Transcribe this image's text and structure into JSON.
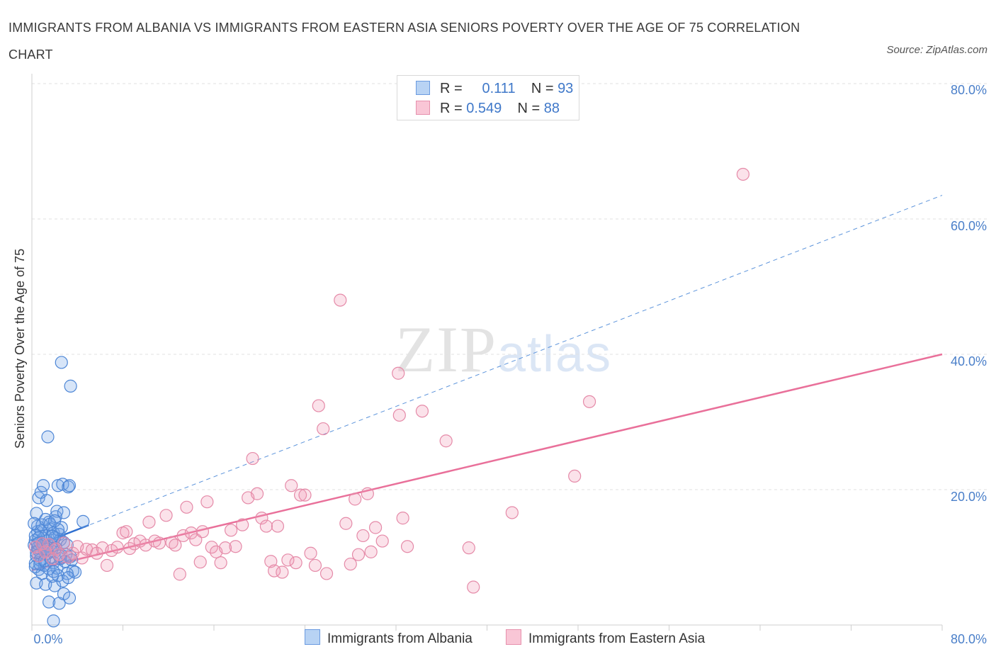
{
  "title": "IMMIGRANTS FROM ALBANIA VS IMMIGRANTS FROM EASTERN ASIA SENIORS POVERTY OVER THE AGE OF 75 CORRELATION CHART",
  "source": "Source: ZipAtlas.com",
  "watermark": {
    "zip": "ZIP",
    "atlas": "atlas"
  },
  "legend": {
    "albania": {
      "r_label": "R =",
      "r_value": "0.111",
      "n_label": "N =",
      "n_value": "93",
      "color": "#a9c8ef",
      "stroke": "#5a8fd6"
    },
    "eastern_asia": {
      "r_label": "R =",
      "r_value": "0.549",
      "n_label": "N =",
      "n_value": "88",
      "color": "#f7bfd0",
      "stroke": "#e07fa0"
    }
  },
  "bottom_legend": {
    "albania": "Immigrants from Albania",
    "eastern_asia": "Immigrants from Eastern Asia"
  },
  "chart_data": {
    "type": "scatter",
    "title": "IMMIGRANTS FROM ALBANIA VS IMMIGRANTS FROM EASTERN ASIA SENIORS POVERTY OVER THE AGE OF 75 CORRELATION CHART",
    "xlabel": "",
    "ylabel": "Seniors Poverty Over the Age of 75",
    "xlim": [
      0,
      80
    ],
    "ylim": [
      0,
      80
    ],
    "x_tick_labels": [
      "0.0%",
      "80.0%"
    ],
    "y_tick_labels": [
      "20.0%",
      "40.0%",
      "60.0%",
      "80.0%"
    ],
    "y_ticks": [
      20,
      40,
      60,
      80
    ],
    "grid": true,
    "series": [
      {
        "name": "Immigrants from Albania",
        "color": "#5b93db",
        "trend": {
          "x0": 0,
          "y0": 11.5,
          "x1": 80,
          "y1": 63.5,
          "solid_until": 5
        },
        "points": [
          [
            0.2,
            11.8
          ],
          [
            0.3,
            12.5
          ],
          [
            0.4,
            10.2
          ],
          [
            0.5,
            13.8
          ],
          [
            0.3,
            9.1
          ],
          [
            0.6,
            11.0
          ],
          [
            0.7,
            12.2
          ],
          [
            0.8,
            10.5
          ],
          [
            0.5,
            14.6
          ],
          [
            0.9,
            11.6
          ],
          [
            1.0,
            12.8
          ],
          [
            1.1,
            10.9
          ],
          [
            1.2,
            13.2
          ],
          [
            0.4,
            16.5
          ],
          [
            0.6,
            18.8
          ],
          [
            0.8,
            19.6
          ],
          [
            1.0,
            20.6
          ],
          [
            1.3,
            18.4
          ],
          [
            1.5,
            15.2
          ],
          [
            1.6,
            14.2
          ],
          [
            1.7,
            12.0
          ],
          [
            1.8,
            11.3
          ],
          [
            1.9,
            13.6
          ],
          [
            2.0,
            10.8
          ],
          [
            2.1,
            16.0
          ],
          [
            2.2,
            16.8
          ],
          [
            2.3,
            20.6
          ],
          [
            2.4,
            13.4
          ],
          [
            2.5,
            12.6
          ],
          [
            2.6,
            14.4
          ],
          [
            2.7,
            20.8
          ],
          [
            2.8,
            12.2
          ],
          [
            3.0,
            10.4
          ],
          [
            3.1,
            11.8
          ],
          [
            3.2,
            20.4
          ],
          [
            3.3,
            20.6
          ],
          [
            3.4,
            10.1
          ],
          [
            3.5,
            9.6
          ],
          [
            3.6,
            8.0
          ],
          [
            4.5,
            15.3
          ],
          [
            2.8,
            16.6
          ],
          [
            1.4,
            27.8
          ],
          [
            2.6,
            38.8
          ],
          [
            3.4,
            35.3
          ],
          [
            0.4,
            6.2
          ],
          [
            0.6,
            8.2
          ],
          [
            0.9,
            7.6
          ],
          [
            1.2,
            6.0
          ],
          [
            1.5,
            3.4
          ],
          [
            2.0,
            5.8
          ],
          [
            2.4,
            3.2
          ],
          [
            2.8,
            4.6
          ],
          [
            3.3,
            4.0
          ],
          [
            3.8,
            7.8
          ],
          [
            1.8,
            7.2
          ],
          [
            1.1,
            8.8
          ],
          [
            0.7,
            9.6
          ],
          [
            0.3,
            13.2
          ],
          [
            0.2,
            15.0
          ],
          [
            1.6,
            10.0
          ],
          [
            1.9,
            9.2
          ],
          [
            2.2,
            8.4
          ],
          [
            2.5,
            9.8
          ],
          [
            0.5,
            11.4
          ],
          [
            0.8,
            13.9
          ],
          [
            1.3,
            12.4
          ],
          [
            1.7,
            11.0
          ],
          [
            2.0,
            12.9
          ],
          [
            2.3,
            14.1
          ],
          [
            2.9,
            9.4
          ],
          [
            3.1,
            7.6
          ],
          [
            0.4,
            10.7
          ],
          [
            0.6,
            12.9
          ],
          [
            1.0,
            11.9
          ],
          [
            1.4,
            10.6
          ],
          [
            1.8,
            13.1
          ],
          [
            2.1,
            11.4
          ],
          [
            2.4,
            10.2
          ],
          [
            0.9,
            14.8
          ],
          [
            1.2,
            15.6
          ],
          [
            1.6,
            14.9
          ],
          [
            2.0,
            15.4
          ],
          [
            0.3,
            8.6
          ],
          [
            0.7,
            9.0
          ],
          [
            1.1,
            9.5
          ],
          [
            1.5,
            8.3
          ],
          [
            1.9,
            7.9
          ],
          [
            2.3,
            7.3
          ],
          [
            2.7,
            6.5
          ],
          [
            3.2,
            7.0
          ],
          [
            1.9,
            0.6
          ],
          [
            0.5,
            12.0
          ],
          [
            1.3,
            11.2
          ]
        ]
      },
      {
        "name": "Immigrants from Eastern Asia",
        "color": "#e9799f",
        "trend": {
          "x0": 0,
          "y0": 8.1,
          "x1": 80,
          "y1": 40.0
        },
        "points": [
          [
            0.3,
            11.5
          ],
          [
            0.6,
            10.2
          ],
          [
            0.9,
            12.0
          ],
          [
            1.2,
            10.8
          ],
          [
            1.5,
            11.9
          ],
          [
            1.8,
            9.8
          ],
          [
            2.1,
            11.2
          ],
          [
            2.4,
            10.4
          ],
          [
            2.8,
            12.1
          ],
          [
            3.2,
            10.0
          ],
          [
            3.6,
            10.6
          ],
          [
            4.0,
            11.6
          ],
          [
            4.4,
            9.9
          ],
          [
            4.8,
            11.2
          ],
          [
            5.3,
            11.1
          ],
          [
            5.7,
            10.6
          ],
          [
            6.2,
            11.4
          ],
          [
            6.6,
            8.8
          ],
          [
            7.0,
            11.0
          ],
          [
            7.5,
            11.5
          ],
          [
            8.0,
            13.6
          ],
          [
            8.3,
            13.8
          ],
          [
            8.6,
            11.3
          ],
          [
            9.0,
            12.0
          ],
          [
            9.5,
            12.4
          ],
          [
            10.0,
            11.8
          ],
          [
            10.3,
            15.2
          ],
          [
            10.8,
            12.4
          ],
          [
            11.2,
            12.1
          ],
          [
            11.8,
            16.2
          ],
          [
            12.3,
            12.2
          ],
          [
            12.6,
            11.8
          ],
          [
            13.0,
            7.5
          ],
          [
            13.3,
            13.2
          ],
          [
            13.6,
            17.4
          ],
          [
            14.0,
            13.6
          ],
          [
            14.4,
            12.6
          ],
          [
            14.8,
            9.3
          ],
          [
            15.0,
            13.8
          ],
          [
            15.4,
            18.2
          ],
          [
            15.8,
            11.5
          ],
          [
            16.2,
            10.8
          ],
          [
            16.6,
            9.2
          ],
          [
            17.0,
            11.4
          ],
          [
            17.5,
            14.0
          ],
          [
            17.9,
            11.6
          ],
          [
            18.5,
            14.8
          ],
          [
            19.0,
            18.8
          ],
          [
            19.4,
            24.6
          ],
          [
            19.8,
            19.4
          ],
          [
            20.2,
            15.8
          ],
          [
            20.6,
            14.6
          ],
          [
            21.0,
            9.4
          ],
          [
            21.3,
            8.0
          ],
          [
            21.6,
            14.6
          ],
          [
            22.0,
            7.8
          ],
          [
            22.5,
            9.6
          ],
          [
            22.8,
            20.6
          ],
          [
            23.2,
            9.2
          ],
          [
            23.6,
            19.2
          ],
          [
            24.0,
            19.2
          ],
          [
            24.5,
            10.6
          ],
          [
            24.9,
            8.8
          ],
          [
            25.2,
            32.4
          ],
          [
            25.6,
            29.0
          ],
          [
            25.9,
            7.6
          ],
          [
            27.1,
            48.0
          ],
          [
            27.6,
            15.0
          ],
          [
            28.0,
            9.0
          ],
          [
            28.4,
            18.6
          ],
          [
            28.7,
            10.4
          ],
          [
            29.1,
            13.2
          ],
          [
            29.5,
            19.4
          ],
          [
            29.8,
            10.8
          ],
          [
            30.2,
            14.4
          ],
          [
            30.8,
            12.4
          ],
          [
            32.2,
            37.2
          ],
          [
            32.3,
            31.0
          ],
          [
            32.6,
            15.8
          ],
          [
            33.0,
            11.6
          ],
          [
            34.3,
            31.6
          ],
          [
            36.4,
            27.2
          ],
          [
            38.4,
            11.4
          ],
          [
            38.8,
            5.6
          ],
          [
            42.2,
            16.6
          ],
          [
            47.7,
            22.0
          ],
          [
            49.0,
            33.0
          ],
          [
            62.5,
            66.6
          ]
        ]
      }
    ]
  }
}
